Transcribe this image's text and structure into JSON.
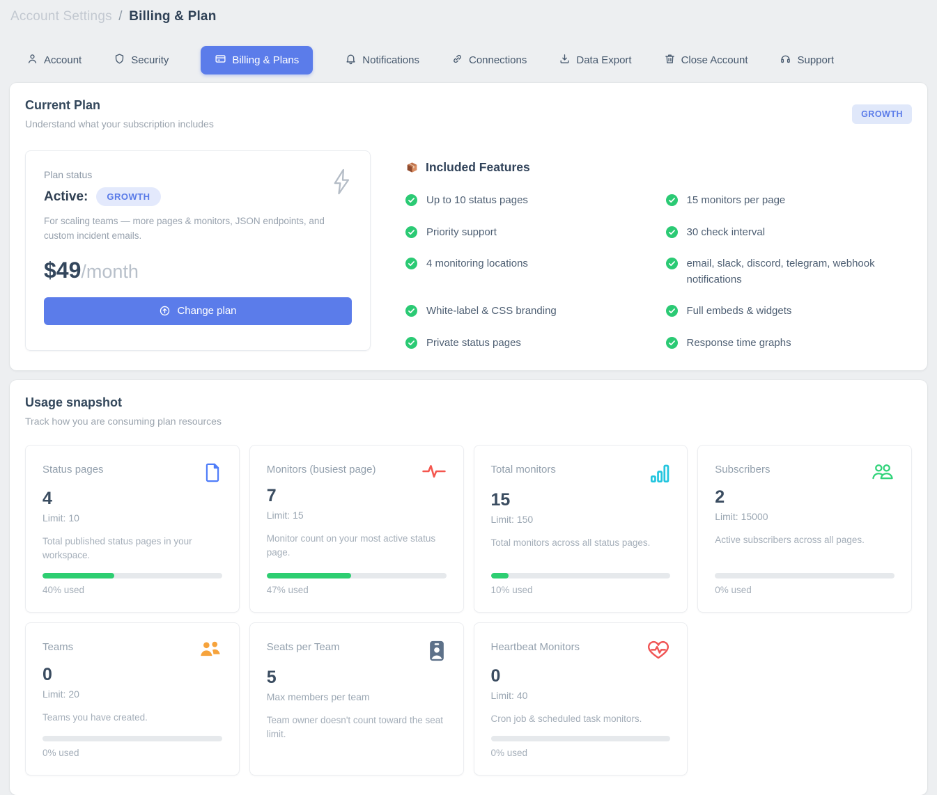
{
  "breadcrumb": {
    "section": "Account Settings",
    "separator": "/",
    "page": "Billing & Plan"
  },
  "tabs": [
    {
      "label": "Account"
    },
    {
      "label": "Security"
    },
    {
      "label": "Billing & Plans"
    },
    {
      "label": "Notifications"
    },
    {
      "label": "Connections"
    },
    {
      "label": "Data Export"
    },
    {
      "label": "Close Account"
    },
    {
      "label": "Support"
    }
  ],
  "current_plan": {
    "title": "Current Plan",
    "subtitle": "Understand what your subscription includes",
    "plan_badge": "GROWTH",
    "status": {
      "label": "Plan status",
      "state": "Active:",
      "badge": "GROWTH",
      "description": "For scaling teams — more pages & monitors, JSON endpoints, and custom incident emails.",
      "price": "$49",
      "period": "/month",
      "change_button": "Change plan"
    },
    "features": {
      "title": "Included Features",
      "items": [
        "Up to 10 status pages",
        "15 monitors per page",
        "Priority support",
        "30 check interval",
        "4 monitoring locations",
        "email, slack, discord, telegram, webhook notifications",
        "White-label & CSS branding",
        "Full embeds & widgets",
        "Private status pages",
        "Response time graphs"
      ]
    }
  },
  "usage": {
    "title": "Usage snapshot",
    "subtitle": "Track how you are consuming plan resources",
    "cards": [
      {
        "title": "Status pages",
        "value": "4",
        "limit": "Limit: 10",
        "description": "Total published status pages in your workspace.",
        "percent": 40,
        "percent_label": "40% used",
        "icon": "document-icon"
      },
      {
        "title": "Monitors (busiest page)",
        "value": "7",
        "limit": "Limit: 15",
        "description": "Monitor count on your most active status page.",
        "percent": 47,
        "percent_label": "47% used",
        "icon": "activity-icon"
      },
      {
        "title": "Total monitors",
        "value": "15",
        "limit": "Limit: 150",
        "description": "Total monitors across all status pages.",
        "percent": 10,
        "percent_label": "10% used",
        "icon": "bar-chart-icon"
      },
      {
        "title": "Subscribers",
        "value": "2",
        "limit": "Limit: 15000",
        "description": "Active subscribers across all pages.",
        "percent": 0,
        "percent_label": "0% used",
        "icon": "users-icon"
      },
      {
        "title": "Teams",
        "value": "0",
        "limit": "Limit: 20",
        "description": "Teams you have created.",
        "percent": 0,
        "percent_label": "0% used",
        "icon": "team-icon"
      },
      {
        "title": "Seats per Team",
        "value": "5",
        "limit": "Max members per team",
        "description": "Team owner doesn't count toward the seat limit.",
        "icon": "id-badge-icon"
      },
      {
        "title": "Heartbeat Monitors",
        "value": "0",
        "limit": "Limit: 40",
        "description": "Cron job & scheduled task monitors.",
        "percent": 0,
        "percent_label": "0% used",
        "icon": "heart-pulse-icon"
      }
    ]
  },
  "colors": {
    "accent": "#5b7cea",
    "badge_bg": "#e3e9fc",
    "success_green": "#2dce71",
    "progress_track": "#e6e9ec",
    "document_icon": "#4f7df9",
    "activity_icon": "#f4564e",
    "bar_chart_icon": "#22c5de",
    "users_icon": "#2fd379",
    "team_icon": "#f6a33c",
    "id_badge_icon": "#5d7189",
    "heart_icon": "#f05454"
  }
}
